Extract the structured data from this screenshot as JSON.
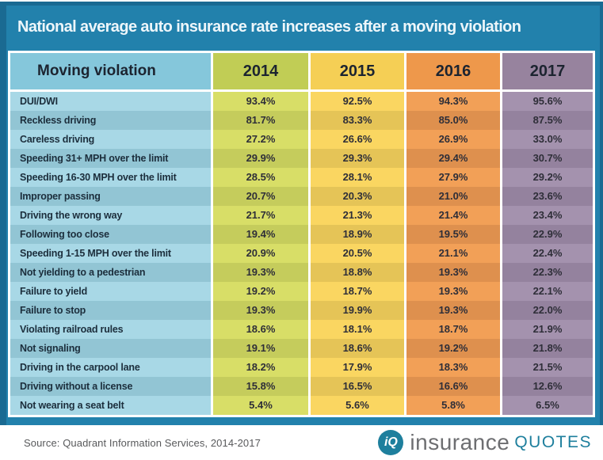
{
  "title": "National average auto insurance rate increases after a moving violation",
  "table": {
    "columns": [
      "Moving violation",
      "2014",
      "2015",
      "2016",
      "2017"
    ],
    "rows": [
      {
        "violation": "DUI/DWI",
        "values": [
          "93.4%",
          "92.5%",
          "94.3%",
          "95.6%"
        ]
      },
      {
        "violation": "Reckless driving",
        "values": [
          "81.7%",
          "83.3%",
          "85.0%",
          "87.5%"
        ]
      },
      {
        "violation": "Careless driving",
        "values": [
          "27.2%",
          "26.6%",
          "26.9%",
          "33.0%"
        ]
      },
      {
        "violation": "Speeding 31+ MPH over the limit",
        "values": [
          "29.9%",
          "29.3%",
          "29.4%",
          "30.7%"
        ]
      },
      {
        "violation": "Speeding 16-30 MPH over the limit",
        "values": [
          "28.5%",
          "28.1%",
          "27.9%",
          "29.2%"
        ]
      },
      {
        "violation": "Improper passing",
        "values": [
          "20.7%",
          "20.3%",
          "21.0%",
          "23.6%"
        ]
      },
      {
        "violation": "Driving the wrong way",
        "values": [
          "21.7%",
          "21.3%",
          "21.4%",
          "23.4%"
        ]
      },
      {
        "violation": "Following too close",
        "values": [
          "19.4%",
          "18.9%",
          "19.5%",
          "22.9%"
        ]
      },
      {
        "violation": "Speeding 1-15 MPH over the limit",
        "values": [
          "20.9%",
          "20.5%",
          "21.1%",
          "22.4%"
        ]
      },
      {
        "violation": "Not yielding to a pedestrian",
        "values": [
          "19.3%",
          "18.8%",
          "19.3%",
          "22.3%"
        ]
      },
      {
        "violation": "Failure to yield",
        "values": [
          "19.2%",
          "18.7%",
          "19.3%",
          "22.1%"
        ]
      },
      {
        "violation": "Failure to stop",
        "values": [
          "19.3%",
          "19.9%",
          "19.3%",
          "22.0%"
        ]
      },
      {
        "violation": "Violating railroad rules",
        "values": [
          "18.6%",
          "18.1%",
          "18.7%",
          "21.9%"
        ]
      },
      {
        "violation": "Not signaling",
        "values": [
          "19.1%",
          "18.6%",
          "19.2%",
          "21.8%"
        ]
      },
      {
        "violation": "Driving in the carpool lane",
        "values": [
          "18.2%",
          "17.9%",
          "18.3%",
          "21.5%"
        ]
      },
      {
        "violation": "Driving without a license",
        "values": [
          "15.8%",
          "16.5%",
          "16.6%",
          "12.6%"
        ]
      },
      {
        "violation": "Not wearing a seat belt",
        "values": [
          "5.4%",
          "5.6%",
          "5.8%",
          "6.5%"
        ]
      }
    ]
  },
  "footer": {
    "source": "Source: Quadrant Information Services, 2014-2017",
    "logo": {
      "icon": "iQ",
      "name_part1": "insurance",
      "name_part2": "quotes"
    }
  },
  "colors": {
    "background_blue": "#2281ac",
    "border_blue": "#1a6a92",
    "violation_column": "#a8d8e6",
    "year_2014": "#d8de67",
    "year_2015": "#fad661",
    "year_2016": "#f2a057",
    "year_2017": "#a492ae",
    "logo_teal": "#1e7f9d",
    "logo_gray": "#6d6e71"
  },
  "chart_data": {
    "type": "table",
    "title": "National average auto insurance rate increases after a moving violation",
    "columns": [
      "Moving violation",
      "2014",
      "2015",
      "2016",
      "2017"
    ],
    "units": "percent rate increase",
    "categories": [
      "2014",
      "2015",
      "2016",
      "2017"
    ],
    "series": [
      {
        "name": "DUI/DWI",
        "values": [
          93.4,
          92.5,
          94.3,
          95.6
        ]
      },
      {
        "name": "Reckless driving",
        "values": [
          81.7,
          83.3,
          85.0,
          87.5
        ]
      },
      {
        "name": "Careless driving",
        "values": [
          27.2,
          26.6,
          26.9,
          33.0
        ]
      },
      {
        "name": "Speeding 31+ MPH over the limit",
        "values": [
          29.9,
          29.3,
          29.4,
          30.7
        ]
      },
      {
        "name": "Speeding 16-30 MPH over the limit",
        "values": [
          28.5,
          28.1,
          27.9,
          29.2
        ]
      },
      {
        "name": "Improper passing",
        "values": [
          20.7,
          20.3,
          21.0,
          23.6
        ]
      },
      {
        "name": "Driving the wrong way",
        "values": [
          21.7,
          21.3,
          21.4,
          23.4
        ]
      },
      {
        "name": "Following too close",
        "values": [
          19.4,
          18.9,
          19.5,
          22.9
        ]
      },
      {
        "name": "Speeding 1-15 MPH over the limit",
        "values": [
          20.9,
          20.5,
          21.1,
          22.4
        ]
      },
      {
        "name": "Not yielding to a pedestrian",
        "values": [
          19.3,
          18.8,
          19.3,
          22.3
        ]
      },
      {
        "name": "Failure to yield",
        "values": [
          19.2,
          18.7,
          19.3,
          22.1
        ]
      },
      {
        "name": "Failure to stop",
        "values": [
          19.3,
          19.9,
          19.3,
          22.0
        ]
      },
      {
        "name": "Violating railroad rules",
        "values": [
          18.6,
          18.1,
          18.7,
          21.9
        ]
      },
      {
        "name": "Not signaling",
        "values": [
          19.1,
          18.6,
          19.2,
          21.8
        ]
      },
      {
        "name": "Driving in the carpool lane",
        "values": [
          18.2,
          17.9,
          18.3,
          21.5
        ]
      },
      {
        "name": "Driving without a license",
        "values": [
          15.8,
          16.5,
          16.6,
          12.6
        ]
      },
      {
        "name": "Not wearing a seat belt",
        "values": [
          5.4,
          5.6,
          5.8,
          6.5
        ]
      }
    ]
  }
}
